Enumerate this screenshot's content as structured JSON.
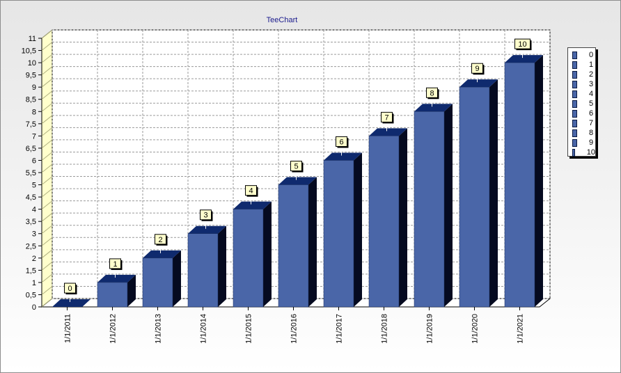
{
  "chart_data": {
    "type": "bar",
    "title": "TeeChart",
    "categories": [
      "1/1/2011",
      "1/1/2012",
      "1/1/2013",
      "1/1/2014",
      "1/1/2015",
      "1/1/2016",
      "1/1/2017",
      "1/1/2018",
      "1/1/2019",
      "1/1/2020",
      "1/1/2021"
    ],
    "values": [
      0,
      1,
      2,
      3,
      4,
      5,
      6,
      7,
      8,
      9,
      10
    ],
    "data_labels": [
      "0",
      "1",
      "2",
      "3",
      "4",
      "5",
      "6",
      "7",
      "8",
      "9",
      "10"
    ],
    "y_ticks": [
      "0",
      "0,5",
      "1",
      "1,5",
      "2",
      "2,5",
      "3",
      "3,5",
      "4",
      "4,5",
      "5",
      "5,5",
      "6",
      "6,5",
      "7",
      "7,5",
      "8",
      "8,5",
      "9",
      "9,5",
      "10",
      "10,5",
      "11"
    ],
    "ylim": [
      0,
      11
    ],
    "y_step": 0.5,
    "grid": true,
    "three_d": true,
    "legend": {
      "position": "right",
      "entries": [
        "0",
        "1",
        "2",
        "3",
        "4",
        "5",
        "6",
        "7",
        "8",
        "9",
        "10"
      ]
    },
    "colors": {
      "bar_front": "#4a66a8",
      "bar_top": "#0f2a6e",
      "bar_side": "#050a20",
      "grid": "#9a9a9a",
      "title": "#1a1a8c",
      "label_fill": "#ffffcc"
    }
  }
}
